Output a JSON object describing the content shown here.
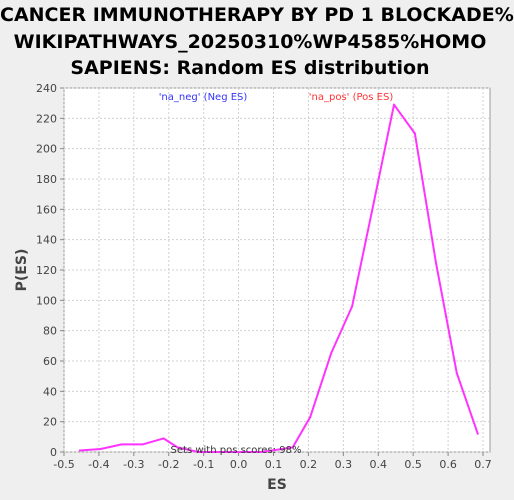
{
  "chart_data": {
    "type": "line",
    "title_lines": [
      "CANCER IMMUNOTHERAPY BY PD 1 BLOCKADE%",
      "WIKIPATHWAYS_20250310%WP4585%HOMO",
      "SAPIENS: Random ES distribution"
    ],
    "xlabel": "ES",
    "ylabel": "P(ES)",
    "xlim": [
      -0.5,
      0.72
    ],
    "ylim": [
      0,
      240
    ],
    "xticks": [
      "-0.5",
      "-0.4",
      "-0.3",
      "-0.2",
      "-0.1",
      "0.0",
      "0.1",
      "0.2",
      "0.3",
      "0.4",
      "0.5",
      "0.6",
      "0.7"
    ],
    "yticks": [
      "0",
      "20",
      "40",
      "60",
      "80",
      "100",
      "120",
      "140",
      "160",
      "180",
      "200",
      "220",
      "240"
    ],
    "grid": true,
    "legend": [
      {
        "label": "'na_neg' (Neg ES)",
        "color": "#3333ff"
      },
      {
        "label": "'na_pos' (Pos ES)",
        "color": "#ff3333"
      }
    ],
    "annotation": "Sets with pos scores: 98%",
    "series": [
      {
        "color": "#ff33ff",
        "x": [
          -0.455,
          -0.395,
          -0.335,
          -0.275,
          -0.215,
          -0.175,
          -0.115,
          -0.055,
          0.005,
          0.065,
          0.125,
          0.155,
          0.205,
          0.265,
          0.325,
          0.385,
          0.445,
          0.505,
          0.565,
          0.625,
          0.685
        ],
        "y": [
          1,
          2,
          5,
          5,
          9,
          3,
          0,
          0,
          0,
          0,
          2,
          3,
          23,
          65,
          96,
          162,
          229,
          210,
          125,
          52,
          12
        ]
      }
    ]
  }
}
